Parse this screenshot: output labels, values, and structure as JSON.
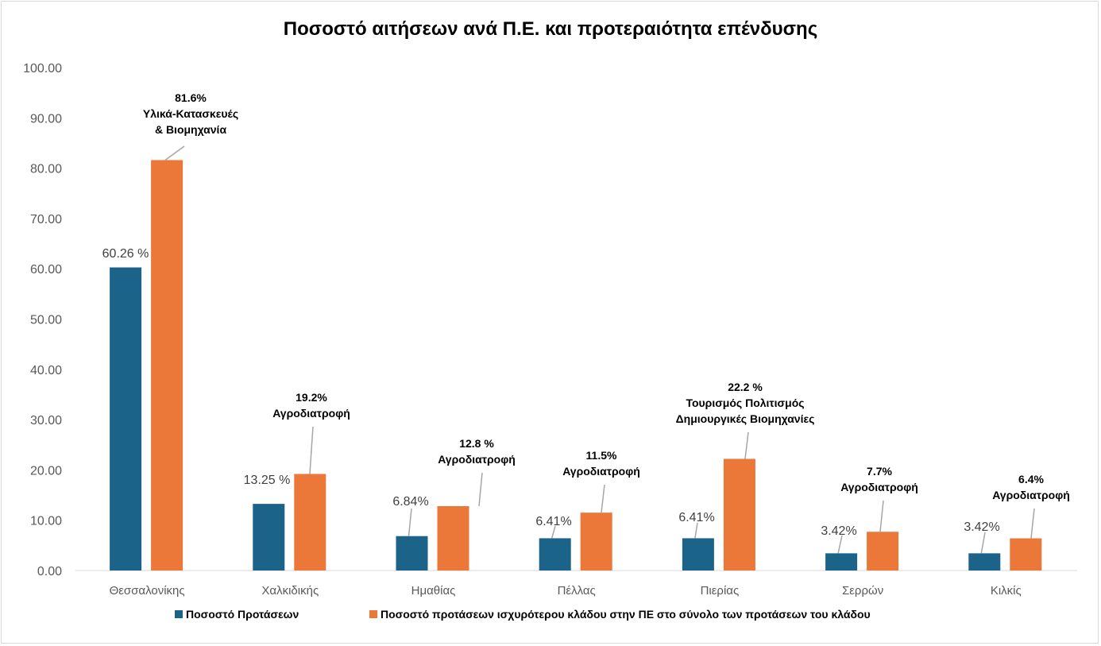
{
  "chart_data": {
    "type": "bar",
    "title": "Ποσοστό αιτήσεων ανά Π.Ε. και προτεραιότητα επένδυσης",
    "xlabel": "",
    "ylabel": "",
    "ylim": [
      0,
      100
    ],
    "yticks": [
      "0.00",
      "10.00",
      "20.00",
      "30.00",
      "40.00",
      "50.00",
      "60.00",
      "70.00",
      "80.00",
      "90.00",
      "100.00"
    ],
    "grid": false,
    "legend_position": "bottom",
    "categories": [
      "Θεσσαλονίκης",
      "Χαλκιδικής",
      "Ημαθίας",
      "Πέλλας",
      "Πιερίας",
      "Σερρών",
      "Κιλκίς"
    ],
    "series": [
      {
        "name": "Ποσοστό Προτάσεων",
        "color": "#1b6388",
        "values": [
          60.26,
          13.25,
          6.84,
          6.41,
          6.41,
          3.42,
          3.42
        ],
        "data_labels": [
          "60.26 %",
          "13.25 %",
          "6.84%",
          "6.41%",
          "6.41%",
          "3.42%",
          "3.42%"
        ]
      },
      {
        "name": "Ποσοστό προτάσεων ισχυρότερου κλάδου στην ΠΕ στο σύνολο των προτάσεων του κλάδου",
        "color": "#eb7739",
        "values": [
          81.6,
          19.2,
          12.8,
          11.5,
          22.2,
          7.7,
          6.4
        ],
        "data_labels": [
          [
            "81.6%",
            "Υλικά-Κατασκευές",
            "& Βιομηχανία"
          ],
          [
            "19.2%",
            "Αγροδιατροφή"
          ],
          [
            "12.8 %",
            "Αγροδιατροφή"
          ],
          [
            "11.5%",
            "Αγροδιατροφή"
          ],
          [
            "22.2 %",
            "Τουρισμός Πολιτισμός",
            "Δημιουργικές Βιομηχανίες"
          ],
          [
            "7.7%",
            "Αγροδιατροφή"
          ],
          [
            "6.4%",
            "Αγροδιατροφή"
          ]
        ]
      }
    ]
  }
}
